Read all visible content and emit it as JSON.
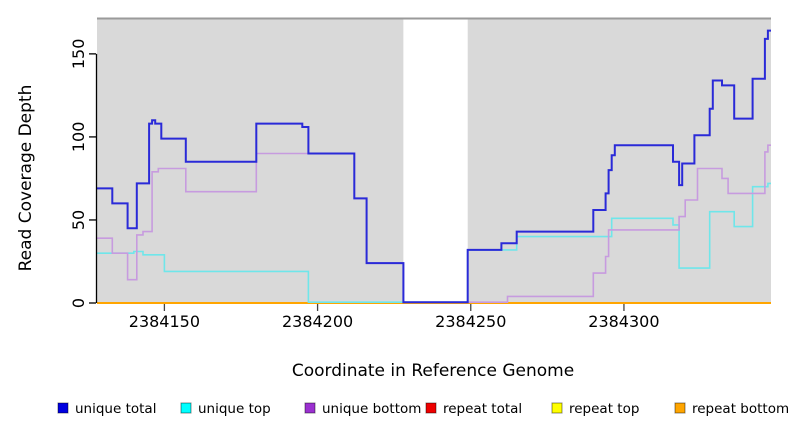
{
  "chart_data": {
    "type": "line",
    "subtype": "step",
    "title": "",
    "xlabel": "Coordinate in Reference Genome",
    "ylabel": "Read Coverage Depth",
    "x_ticks": [
      2384150,
      2384200,
      2384250,
      2384300
    ],
    "x_tick_labels": [
      "2384150",
      "2384200",
      "2384250",
      "2384300"
    ],
    "y_ticks": [
      0,
      50,
      100,
      150
    ],
    "y_tick_labels": [
      "0",
      "50",
      "100",
      "150"
    ],
    "x_range": [
      2384128,
      2384348
    ],
    "y_range": [
      0,
      171
    ],
    "grid": false,
    "plot_bg_color": "#D9D9D9",
    "gap_region": [
      2384228,
      2384249
    ],
    "legend_position": "bottom",
    "draw_order": [
      "repeat total",
      "repeat top",
      "repeat bottom",
      "unique top",
      "unique bottom",
      "unique total"
    ],
    "series": [
      {
        "name": "unique total",
        "line_color": "#2A2AD8",
        "legend_color": "#0000E0",
        "line_width": 2,
        "points": [
          [
            2384128,
            69
          ],
          [
            2384133,
            60
          ],
          [
            2384138,
            45
          ],
          [
            2384141,
            72
          ],
          [
            2384145,
            108
          ],
          [
            2384146,
            110
          ],
          [
            2384147,
            108
          ],
          [
            2384149,
            99
          ],
          [
            2384157,
            85
          ],
          [
            2384180,
            108
          ],
          [
            2384195,
            106
          ],
          [
            2384197,
            90
          ],
          [
            2384212,
            63
          ],
          [
            2384216,
            24
          ],
          [
            2384228,
            0.5
          ],
          [
            2384249,
            32
          ],
          [
            2384260,
            36
          ],
          [
            2384265,
            43
          ],
          [
            2384290,
            56
          ],
          [
            2384294,
            66
          ],
          [
            2384295,
            80
          ],
          [
            2384296,
            89
          ],
          [
            2384297,
            95
          ],
          [
            2384316,
            85
          ],
          [
            2384318,
            71
          ],
          [
            2384319,
            84
          ],
          [
            2384323,
            101
          ],
          [
            2384328,
            117
          ],
          [
            2384329,
            134
          ],
          [
            2384332,
            131
          ],
          [
            2384336,
            111
          ],
          [
            2384342,
            135
          ],
          [
            2384346,
            159
          ],
          [
            2384347,
            164
          ],
          [
            2384348,
            164
          ]
        ]
      },
      {
        "name": "unique top",
        "line_color": "#6FE6EA",
        "legend_color": "#00FFFF",
        "line_width": 1.6,
        "points": [
          [
            2384128,
            30
          ],
          [
            2384140,
            31
          ],
          [
            2384143,
            29
          ],
          [
            2384150,
            19
          ],
          [
            2384197,
            0.5
          ],
          [
            2384228,
            0.5
          ],
          [
            2384249,
            32
          ],
          [
            2384265,
            40
          ],
          [
            2384296,
            51
          ],
          [
            2384316,
            47
          ],
          [
            2384318,
            21
          ],
          [
            2384328,
            55
          ],
          [
            2384336,
            46
          ],
          [
            2384342,
            70
          ],
          [
            2384347,
            72
          ],
          [
            2384348,
            72
          ]
        ]
      },
      {
        "name": "unique bottom",
        "line_color": "#C79BDF",
        "legend_color": "#9B30D0",
        "line_width": 1.6,
        "points": [
          [
            2384128,
            39
          ],
          [
            2384133,
            30
          ],
          [
            2384138,
            14
          ],
          [
            2384141,
            41
          ],
          [
            2384143,
            43
          ],
          [
            2384146,
            79
          ],
          [
            2384148,
            81
          ],
          [
            2384157,
            67
          ],
          [
            2384180,
            90
          ],
          [
            2384212,
            63
          ],
          [
            2384216,
            24
          ],
          [
            2384228,
            0.5
          ],
          [
            2384249,
            0.5
          ],
          [
            2384262,
            4
          ],
          [
            2384290,
            18
          ],
          [
            2384294,
            28
          ],
          [
            2384295,
            44
          ],
          [
            2384318,
            52
          ],
          [
            2384320,
            62
          ],
          [
            2384324,
            81
          ],
          [
            2384332,
            75
          ],
          [
            2384334,
            66
          ],
          [
            2384346,
            91
          ],
          [
            2384347,
            95
          ],
          [
            2384348,
            95
          ]
        ]
      },
      {
        "name": "repeat total",
        "line_color": "#E06080",
        "legend_color": "#EE0000",
        "line_width": 1.6,
        "points": [
          [
            2384128,
            0
          ],
          [
            2384249,
            0.4
          ],
          [
            2384262,
            0
          ],
          [
            2384348,
            0
          ]
        ]
      },
      {
        "name": "repeat top",
        "line_color": "#F2F261",
        "legend_color": "#FFFF00",
        "line_width": 1.6,
        "points": [
          [
            2384128,
            0
          ],
          [
            2384348,
            0
          ]
        ]
      },
      {
        "name": "repeat bottom",
        "line_color": "#FFA500",
        "legend_color": "#FFA500",
        "line_width": 2,
        "points": [
          [
            2384128,
            0
          ],
          [
            2384348,
            0
          ]
        ]
      }
    ]
  },
  "legend": {
    "items": [
      {
        "label": "unique total"
      },
      {
        "label": "unique top"
      },
      {
        "label": "unique bottom"
      },
      {
        "label": "repeat total"
      },
      {
        "label": "repeat top"
      },
      {
        "label": "repeat bottom"
      }
    ]
  }
}
